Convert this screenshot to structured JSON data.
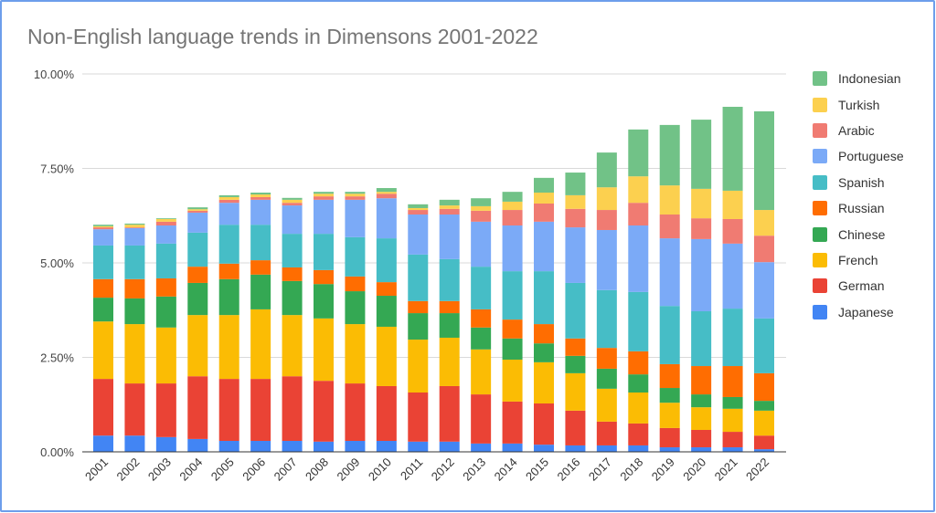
{
  "chart_data": {
    "type": "bar",
    "stacked": true,
    "title": "Non-English language trends in Dimensons 2001-2022",
    "xlabel": "",
    "ylabel": "",
    "ylim": [
      0,
      10
    ],
    "y_ticks": [
      "0.00%",
      "2.50%",
      "5.00%",
      "7.50%",
      "10.00%"
    ],
    "y_tick_values": [
      0,
      2.5,
      5,
      7.5,
      10
    ],
    "grid": true,
    "legend_position": "right",
    "categories": [
      "2001",
      "2002",
      "2003",
      "2004",
      "2005",
      "2006",
      "2007",
      "2008",
      "2009",
      "2010",
      "2011",
      "2012",
      "2013",
      "2014",
      "2015",
      "2016",
      "2017",
      "2018",
      "2019",
      "2020",
      "2021",
      "2022"
    ],
    "series": [
      {
        "name": "Japanese",
        "color": "#4285f4",
        "values": [
          0.43,
          0.43,
          0.39,
          0.34,
          0.29,
          0.29,
          0.29,
          0.27,
          0.29,
          0.29,
          0.27,
          0.27,
          0.22,
          0.22,
          0.19,
          0.17,
          0.17,
          0.17,
          0.12,
          0.12,
          0.12,
          0.07
        ]
      },
      {
        "name": "German",
        "color": "#ea4335",
        "values": [
          1.5,
          1.38,
          1.42,
          1.66,
          1.64,
          1.64,
          1.71,
          1.61,
          1.52,
          1.45,
          1.3,
          1.47,
          1.3,
          1.11,
          1.09,
          0.92,
          0.63,
          0.58,
          0.51,
          0.46,
          0.41,
          0.36
        ]
      },
      {
        "name": "French",
        "color": "#fbbc04",
        "values": [
          1.52,
          1.57,
          1.48,
          1.62,
          1.69,
          1.84,
          1.62,
          1.65,
          1.57,
          1.57,
          1.4,
          1.28,
          1.19,
          1.11,
          1.09,
          0.99,
          0.87,
          0.82,
          0.67,
          0.6,
          0.61,
          0.66
        ]
      },
      {
        "name": "Chinese",
        "color": "#34a853",
        "values": [
          0.63,
          0.68,
          0.82,
          0.85,
          0.95,
          0.92,
          0.9,
          0.91,
          0.87,
          0.82,
          0.7,
          0.65,
          0.58,
          0.56,
          0.5,
          0.46,
          0.53,
          0.48,
          0.39,
          0.34,
          0.31,
          0.26
        ]
      },
      {
        "name": "Russian",
        "color": "#ff6d01",
        "values": [
          0.49,
          0.51,
          0.48,
          0.43,
          0.41,
          0.38,
          0.36,
          0.37,
          0.39,
          0.36,
          0.32,
          0.32,
          0.48,
          0.5,
          0.51,
          0.46,
          0.55,
          0.61,
          0.63,
          0.75,
          0.82,
          0.73
        ]
      },
      {
        "name": "Spanish",
        "color": "#46bdc6",
        "values": [
          0.89,
          0.89,
          0.92,
          0.9,
          1.03,
          0.94,
          0.89,
          0.96,
          1.04,
          1.16,
          1.23,
          1.11,
          1.13,
          1.28,
          1.4,
          1.47,
          1.53,
          1.57,
          1.54,
          1.45,
          1.52,
          1.45
        ]
      },
      {
        "name": "Portuguese",
        "color": "#7baaf7",
        "values": [
          0.43,
          0.46,
          0.48,
          0.53,
          0.58,
          0.66,
          0.75,
          0.9,
          0.99,
          1.06,
          1.06,
          1.18,
          1.19,
          1.21,
          1.31,
          1.47,
          1.59,
          1.76,
          1.79,
          1.91,
          1.72,
          1.49
        ]
      },
      {
        "name": "Arabic",
        "color": "#f07b72",
        "values": [
          0.05,
          0.02,
          0.1,
          0.05,
          0.08,
          0.07,
          0.07,
          0.09,
          0.09,
          0.12,
          0.12,
          0.15,
          0.29,
          0.41,
          0.48,
          0.49,
          0.53,
          0.6,
          0.63,
          0.55,
          0.65,
          0.7
        ]
      },
      {
        "name": "Turkish",
        "color": "#fcd04f",
        "values": [
          0.03,
          0.07,
          0.07,
          0.04,
          0.07,
          0.07,
          0.08,
          0.07,
          0.07,
          0.05,
          0.05,
          0.09,
          0.12,
          0.22,
          0.29,
          0.36,
          0.6,
          0.7,
          0.77,
          0.78,
          0.75,
          0.68
        ]
      },
      {
        "name": "Indonesian",
        "color": "#71c287",
        "values": [
          0.04,
          0.03,
          0.02,
          0.05,
          0.05,
          0.05,
          0.05,
          0.05,
          0.05,
          0.1,
          0.1,
          0.15,
          0.21,
          0.26,
          0.39,
          0.6,
          0.92,
          1.24,
          1.6,
          1.83,
          2.22,
          2.61
        ]
      }
    ]
  }
}
